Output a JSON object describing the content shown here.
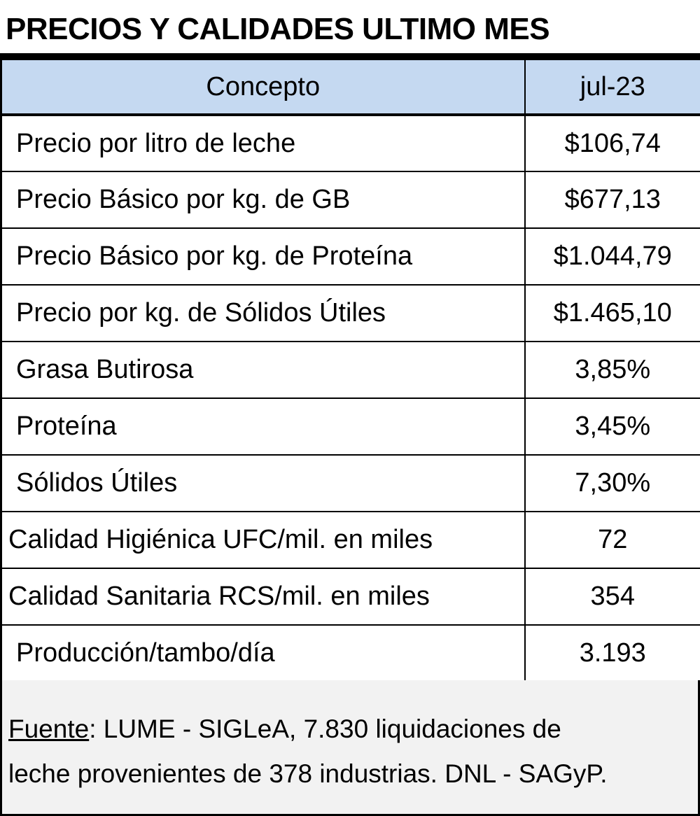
{
  "title": "PRECIOS Y CALIDADES ULTIMO MES",
  "table": {
    "headers": {
      "concept": "Concepto",
      "period": "jul-23"
    },
    "rows": [
      {
        "label": "Precio por litro de leche",
        "value": "$106,74"
      },
      {
        "label": "Precio Básico por kg. de GB",
        "value": "$677,13"
      },
      {
        "label": "Precio Básico por kg. de Proteína",
        "value": "$1.044,79"
      },
      {
        "label": "Precio por kg. de Sólidos Útiles",
        "value": "$1.465,10"
      },
      {
        "label": "Grasa Butirosa",
        "value": "3,85%"
      },
      {
        "label": "Proteína",
        "value": "3,45%"
      },
      {
        "label": "Sólidos Útiles",
        "value": "7,30%"
      },
      {
        "label": "Calidad Higiénica UFC/mil. en miles",
        "value": "72"
      },
      {
        "label": "Calidad Sanitaria RCS/mil. en miles",
        "value": "354"
      },
      {
        "label": "Producción/tambo/día",
        "value": "3.193"
      }
    ]
  },
  "footer": {
    "source_label": "Fuente",
    "source_line1": ":  LUME - SIGLeA, 7.830 liquidaciones de",
    "source_line2": "leche provenientes de 378 industrias. DNL - SAGyP."
  },
  "colors": {
    "header_bg": "#c5d9f1",
    "footer_bg": "#f2f2f2",
    "border": "#000000"
  }
}
